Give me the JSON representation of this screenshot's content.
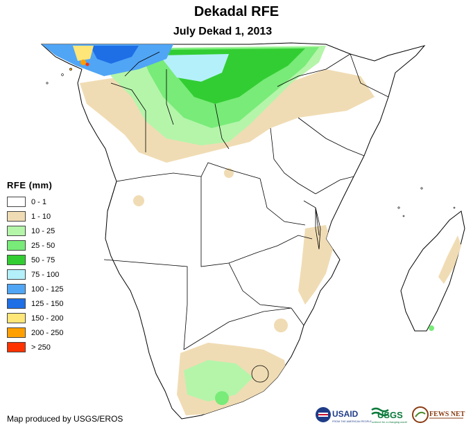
{
  "title": "Dekadal RFE",
  "subtitle": "July Dekad 1, 2013",
  "legend": {
    "title": "RFE (mm)",
    "items": [
      {
        "label": "0 - 1",
        "color": "#ffffff"
      },
      {
        "label": "1 - 10",
        "color": "#f0dcb4"
      },
      {
        "label": "10 - 25",
        "color": "#b4f5aa"
      },
      {
        "label": "25 - 50",
        "color": "#78eb78"
      },
      {
        "label": "50 - 75",
        "color": "#32cd32"
      },
      {
        "label": "75 - 100",
        "color": "#b4f0fa"
      },
      {
        "label": "100 - 125",
        "color": "#50a5f5"
      },
      {
        "label": "125 - 150",
        "color": "#1e6ee6"
      },
      {
        "label": "150 - 200",
        "color": "#ffe678"
      },
      {
        "label": "200 - 250",
        "color": "#ffa000"
      },
      {
        "label": "> 250",
        "color": "#ff3200"
      }
    ]
  },
  "credit": "Map produced by USGS/EROS",
  "logos": {
    "usaid": "USAID",
    "usaid_tagline": "FROM THE AMERICAN PEOPLE",
    "usgs": "USGS",
    "usgs_tagline": "science for a changing world",
    "fewsnet": "FEWS NET"
  }
}
